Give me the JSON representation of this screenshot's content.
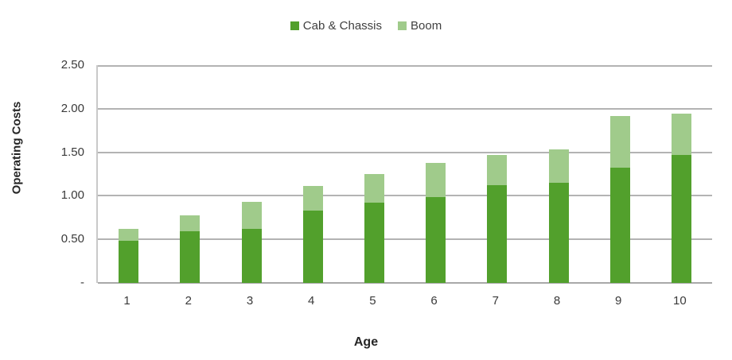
{
  "chart_data": {
    "type": "bar",
    "stacked": true,
    "title": "",
    "categories": [
      "1",
      "2",
      "3",
      "4",
      "5",
      "6",
      "7",
      "8",
      "9",
      "10"
    ],
    "series": [
      {
        "name": "Cab & Chassis",
        "color": "#52A02C",
        "values": [
          0.48,
          0.59,
          0.62,
          0.83,
          0.92,
          0.99,
          1.12,
          1.15,
          1.32,
          1.47
        ]
      },
      {
        "name": "Boom",
        "color": "#A0CB8B",
        "values": [
          0.14,
          0.19,
          0.31,
          0.28,
          0.33,
          0.39,
          0.35,
          0.38,
          0.6,
          0.47
        ]
      }
    ],
    "totals": [
      0.62,
      0.78,
      0.93,
      1.11,
      1.25,
      1.38,
      1.47,
      1.53,
      1.92,
      1.94
    ],
    "xlabel": "Age",
    "ylabel": "Operating Costs",
    "ylim": [
      0,
      2.5
    ],
    "y_ticks": [
      {
        "label": "2.50",
        "value": 2.5
      },
      {
        "label": "2.00",
        "value": 2.0
      },
      {
        "label": "1.50",
        "value": 1.5
      },
      {
        "label": "1.00",
        "value": 1.0
      },
      {
        "label": "0.50",
        "value": 0.5
      },
      {
        "label": "-",
        "value": 0.0
      }
    ],
    "grid": true,
    "legend_position": "top"
  },
  "colors": {
    "gridline": "#B3B3B3",
    "axis_line": "#C9C9C9",
    "tick_text": "#3A3A3A",
    "legend_text": "#404040",
    "axis_title_text": "#262626",
    "background": "#FFFFFF"
  }
}
